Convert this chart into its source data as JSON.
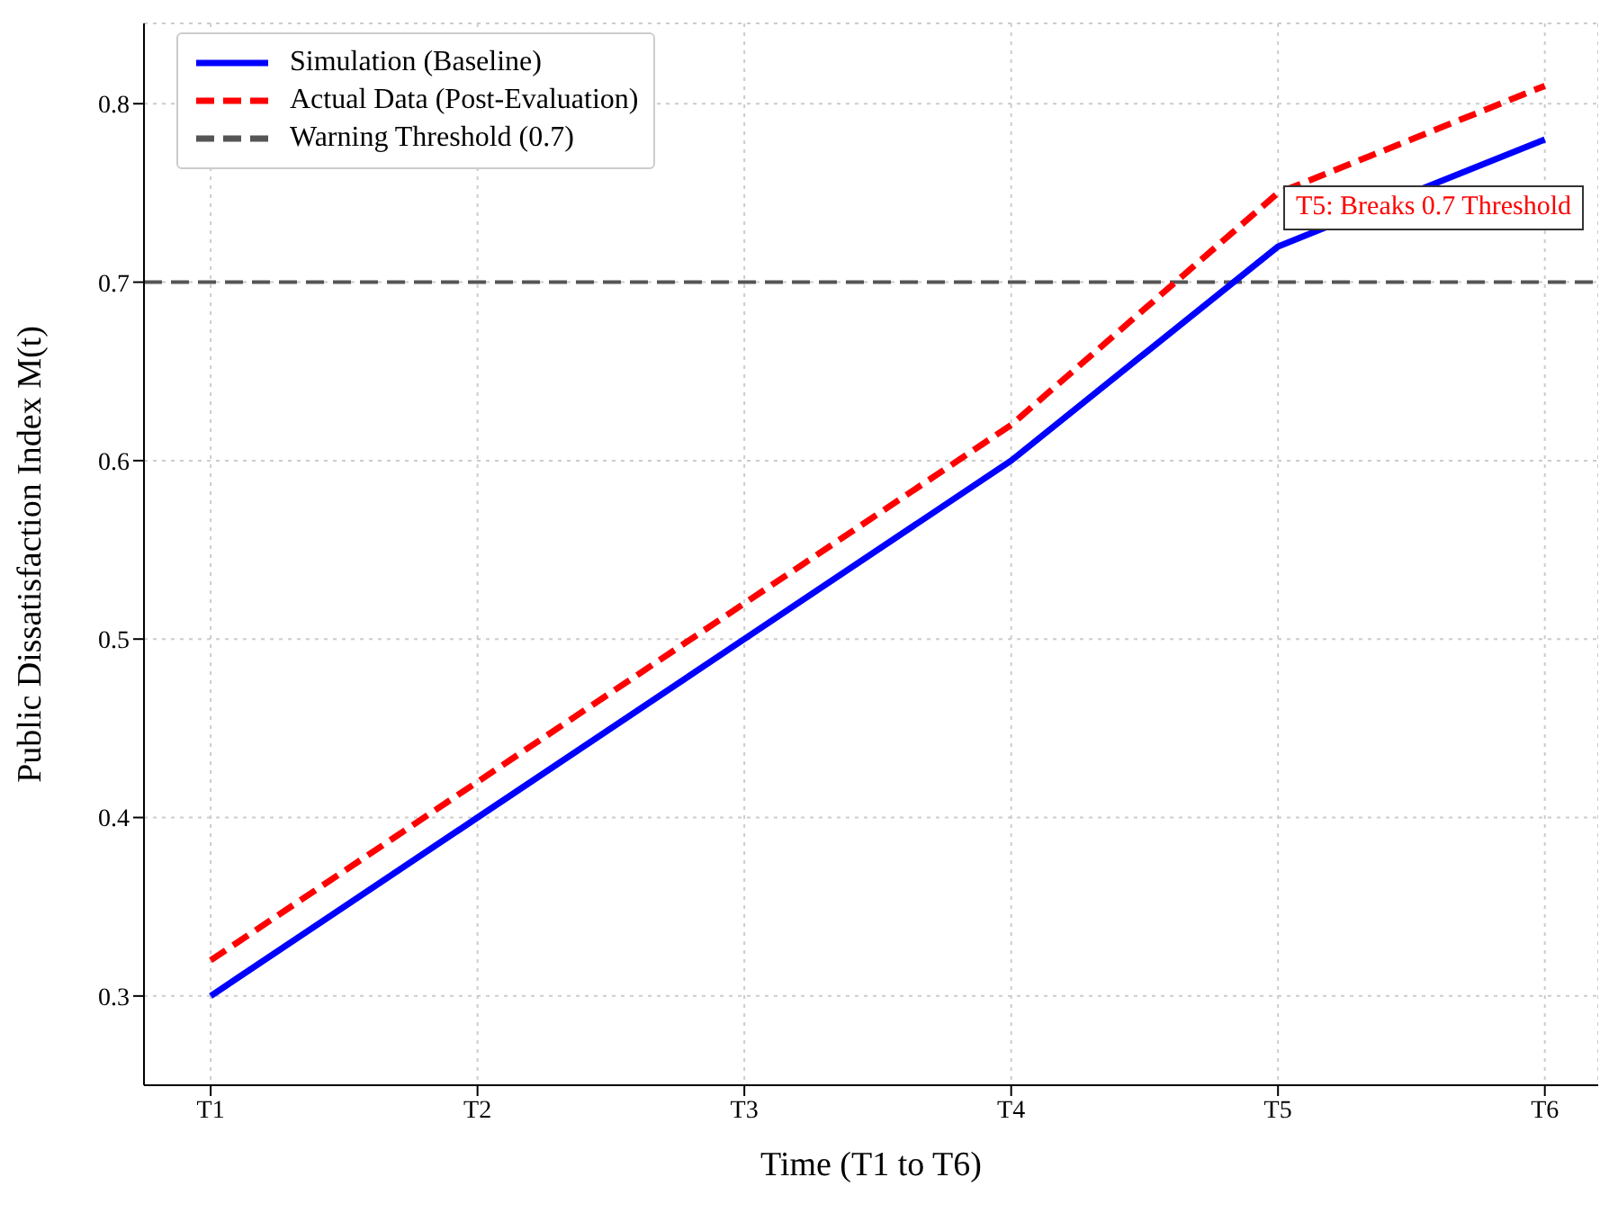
{
  "chart_data": {
    "type": "line",
    "xlabel": "Time (T1 to T6)",
    "ylabel": "Public Dissatisfaction Index M(t)",
    "categories": [
      "T1",
      "T2",
      "T3",
      "T4",
      "T5",
      "T6"
    ],
    "series": [
      {
        "name": "Simulation (Baseline)",
        "color": "#0000ff",
        "values": [
          0.3,
          0.4,
          0.5,
          0.6,
          0.72,
          0.78
        ],
        "line_style": "solid"
      },
      {
        "name": "Actual Data (Post-Evaluation)",
        "color": "#ff0000",
        "values": [
          0.32,
          0.42,
          0.52,
          0.62,
          0.75,
          0.81
        ],
        "line_style": "dashed"
      }
    ],
    "ref_lines": [
      {
        "axis": "y",
        "value": 0.7,
        "label": "Warning Threshold (0.7)",
        "color": "#555555",
        "line_style": "dashed"
      }
    ],
    "annotations": [
      "T5: Breaks 0.7 Threshold"
    ],
    "ylim": [
      0.25,
      0.845
    ],
    "yticks": [
      0.3,
      0.4,
      0.5,
      0.6,
      0.7,
      0.8
    ],
    "grid": true,
    "legend": "top left",
    "marker": "none"
  }
}
